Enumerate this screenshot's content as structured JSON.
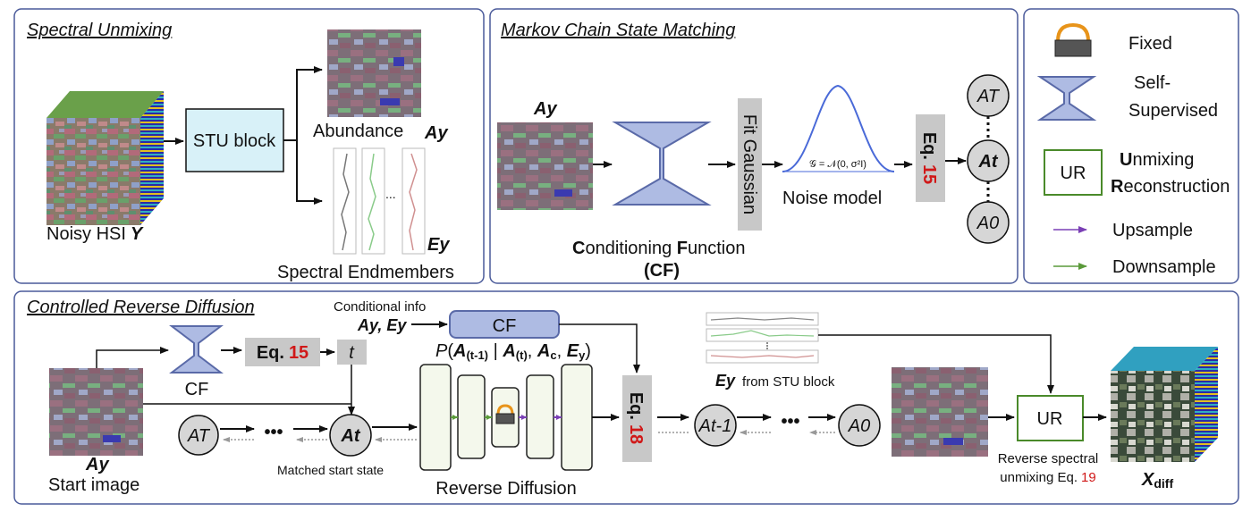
{
  "panels": {
    "unmixing": {
      "title": "Spectral Unmixing",
      "stu_block": "STU block",
      "abundance": "Abundance",
      "abundance_symbol": "Ay",
      "noisy_label": "Noisy HSI",
      "noisy_symbol": "Y",
      "endmember_symbol": "Ey",
      "endmember_dots": "...",
      "endmembers_label": "Spectral Endmembers"
    },
    "markov": {
      "title": "Markov Chain State Matching",
      "input_symbol": "Ay",
      "fit_gaussian": "Fit Gaussian",
      "gaussian_formula": "𝒢 = 𝒩(0, σ²I)",
      "noise_model": "Noise model",
      "eq_prefix": "Eq.",
      "eq_num": "15",
      "state_top": "AT",
      "state_mid": "At",
      "state_bottom": "A0",
      "cf_line1_a": "C",
      "cf_line1_b": "onditioning ",
      "cf_line1_c": "F",
      "cf_line1_d": "unction",
      "cf_line2": "(CF)"
    },
    "legend": {
      "fixed": "Fixed",
      "self_line1": "Self-",
      "self_line2": "Supervised",
      "ur_box": "UR",
      "ur_line1_bold": "U",
      "ur_line1_rest": "nmixing",
      "ur_line2_bold": "R",
      "ur_line2_rest": "econstruction",
      "upsample": "Upsample",
      "downsample": "Downsample"
    },
    "diffusion": {
      "title": "Controlled Reverse Diffusion",
      "conditional_info": "Conditional info",
      "conditional_symbols": "Ay, Ey",
      "cf_box": "CF",
      "cf_label": "CF",
      "eq15_prefix": "Eq.",
      "eq15_num": "15",
      "t_box": "t",
      "prob_expr": "P(A(t-1) | A(t), Ac, Ey)",
      "start_symbol": "Ay",
      "start_label": "Start image",
      "state_T": "AT",
      "ellipsis": "•••",
      "state_t": "At",
      "matched_label": "Matched start state",
      "reverse_label": "Reverse Diffusion",
      "eq18_prefix": "Eq.",
      "eq18_num": "18",
      "state_t1": "At-1",
      "state_0": "A0",
      "ey_symbol": "Ey",
      "ey_from": "from STU block",
      "ur_box": "UR",
      "reverse_unmix_line1": "Reverse spectral",
      "reverse_unmix_line2": "unmixing Eq.",
      "reverse_unmix_num": "19",
      "output_symbol": "Xdiff"
    }
  },
  "colors": {
    "panel_border": "#4a5a9a",
    "stu_fill": "#d8f1f8",
    "hourglass_fill": "#aebbe3",
    "hourglass_stroke": "#5a6aa8",
    "eq_fill": "#c8c8c8",
    "state_fill": "#d6d6d6",
    "ur_stroke": "#4a8a2a",
    "upsample": "#7a3fb5",
    "downsample": "#5a9a3a",
    "eq_red": "#d01818"
  }
}
